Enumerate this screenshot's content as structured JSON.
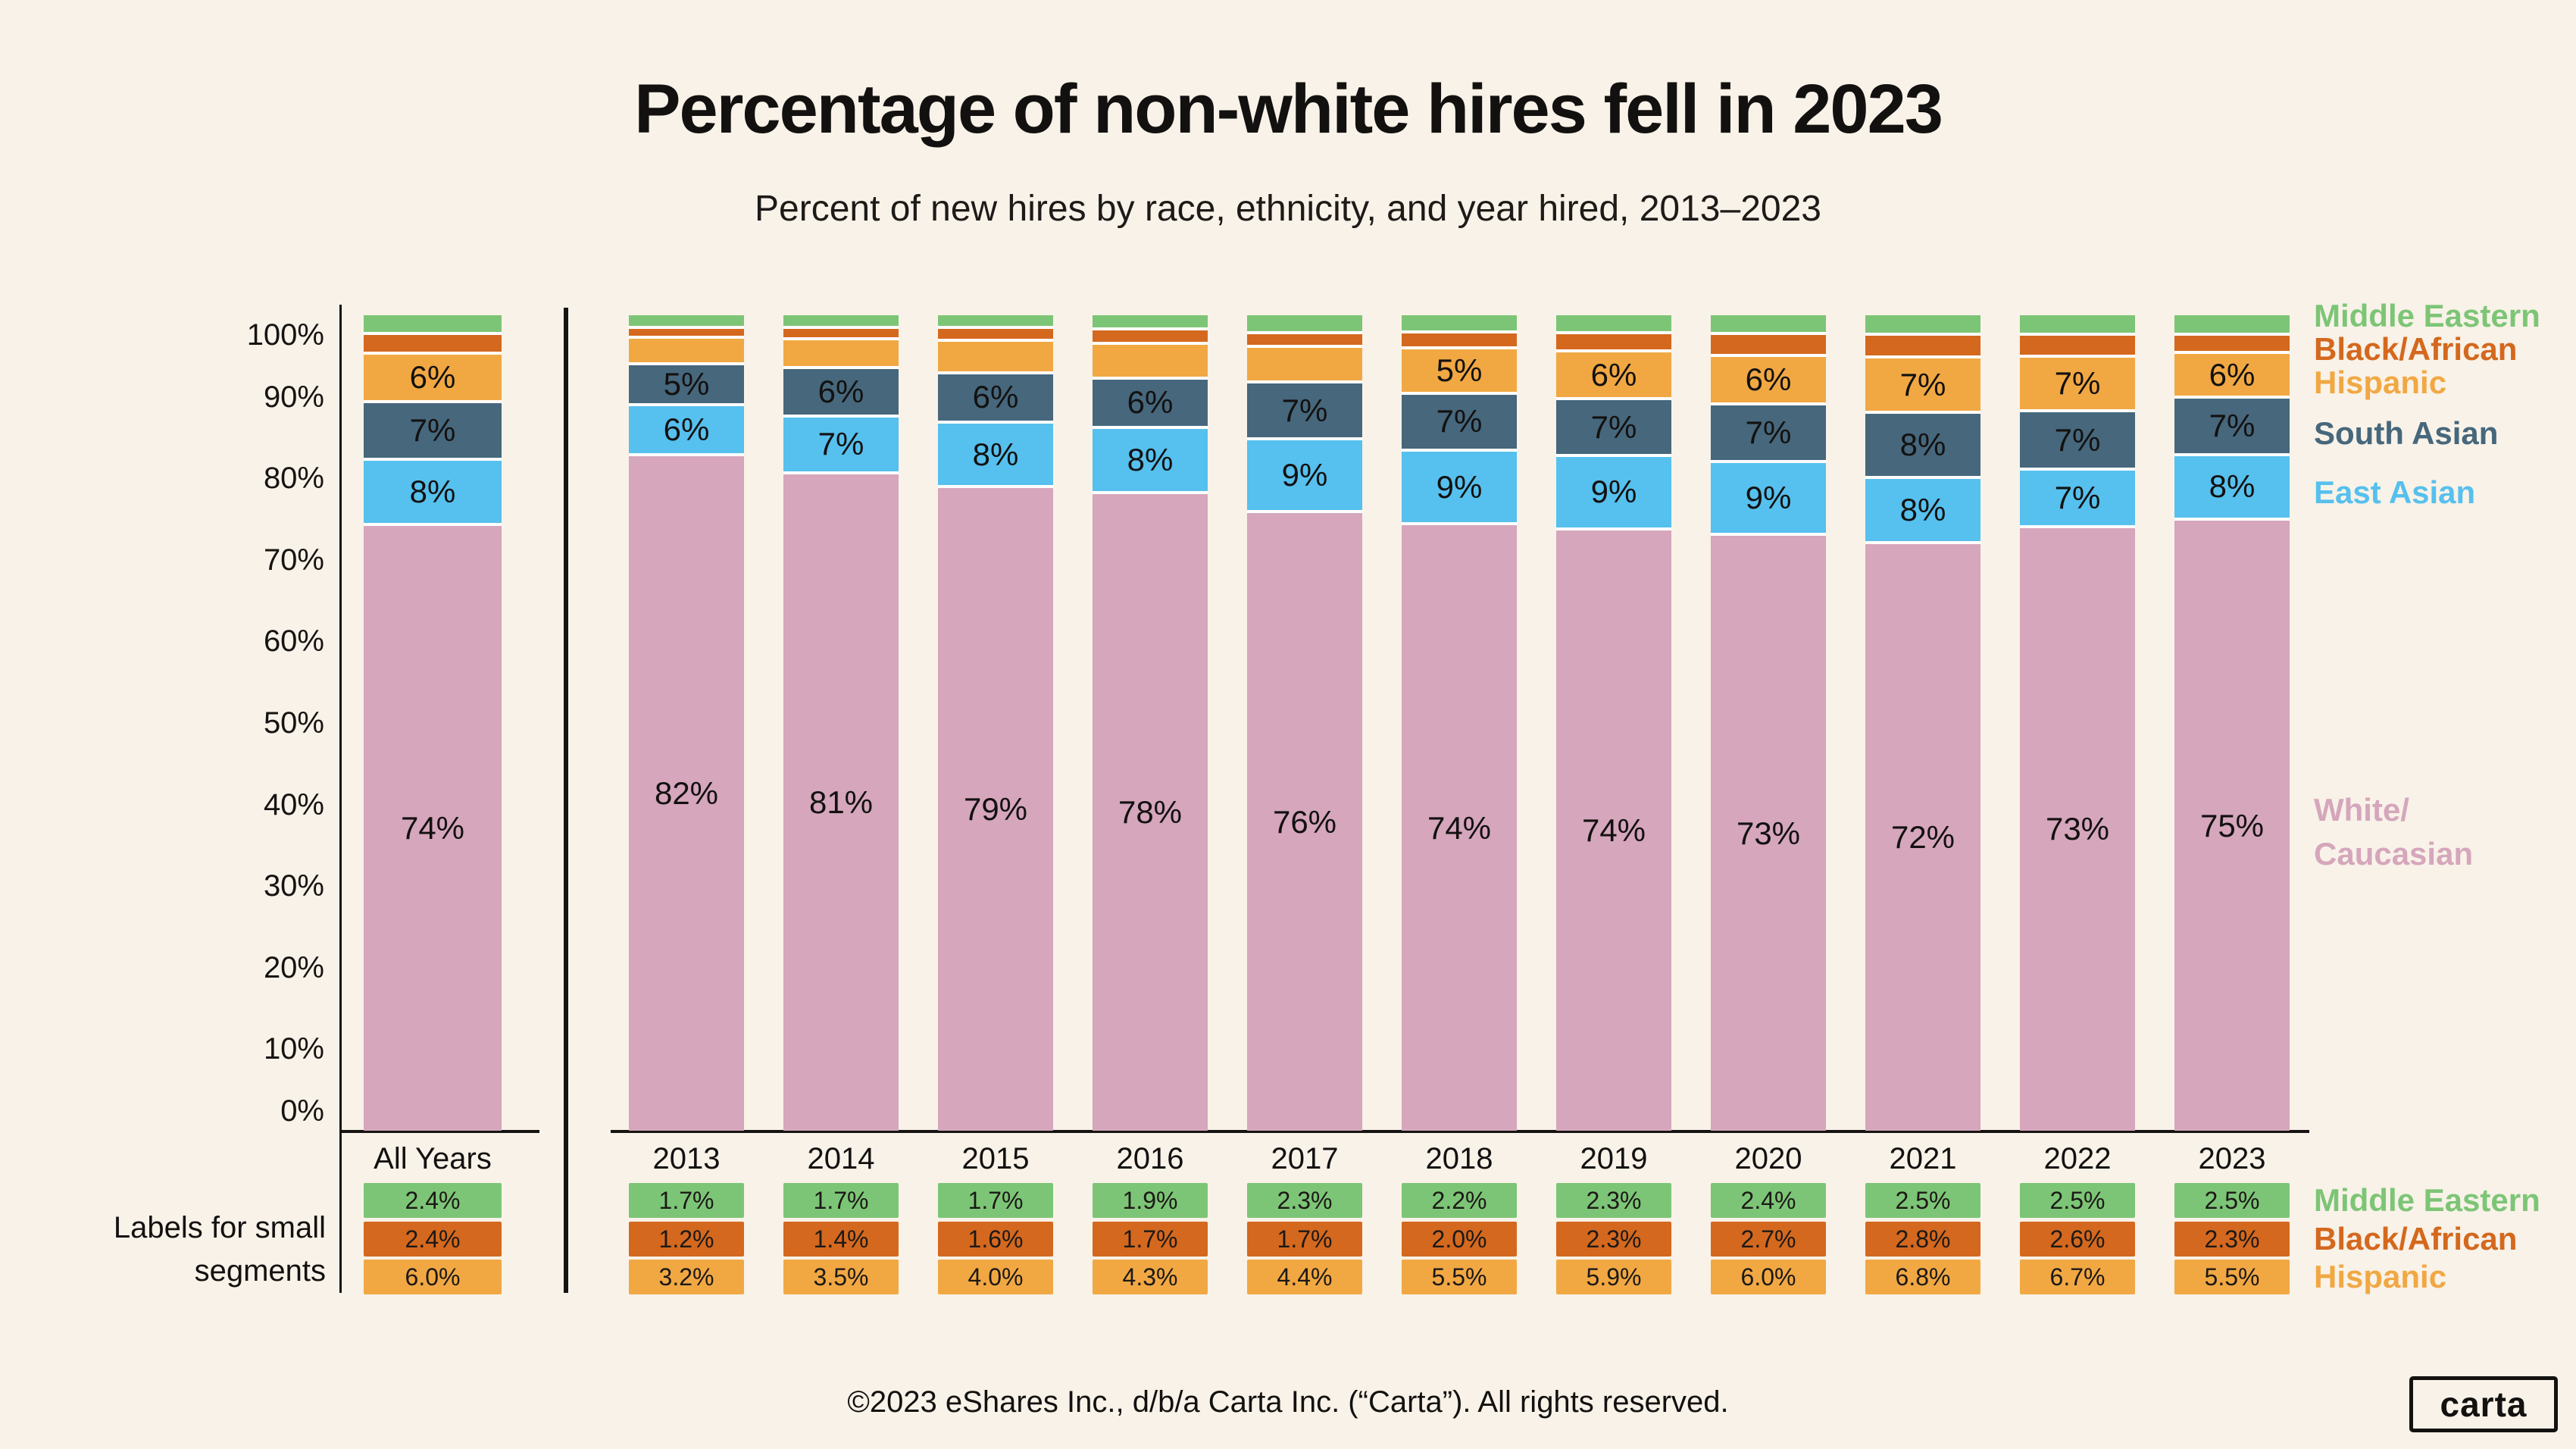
{
  "title": "Percentage of non-white hires fell in 2023",
  "subtitle": "Percent of new hires by race, ethnicity, and year hired, 2013–2023",
  "note": "Labels for small\nsegments",
  "footer": "©2023 eShares Inc., d/b/a Carta Inc. (“Carta”). All rights reserved.",
  "logo_text": "carta",
  "colors": {
    "background": "#f8f2e8",
    "text": "#131110",
    "axis": "#161412",
    "segment_gap": "#ffffff",
    "middle_eastern": "#7dc576",
    "black_african": "#d4681e",
    "hispanic": "#f1a843",
    "south_asian": "#46677c",
    "east_asian": "#56c0ee",
    "white_caucasian": "#d5a6bc"
  },
  "legend": {
    "middle_eastern": "Middle Eastern",
    "black_african": "Black/African",
    "hispanic": "Hispanic",
    "south_asian": "South Asian",
    "east_asian": "East Asian",
    "white_caucasian": "White/\nCaucasian",
    "bottom_middle_eastern": "Middle Eastern",
    "bottom_black_african": "Black/African",
    "bottom_hispanic": "Hispanic"
  },
  "chart_data": {
    "type": "bar",
    "stacked": true,
    "title": "Percentage of non-white hires fell in 2023",
    "xlabel": "",
    "ylabel": "",
    "ylim": [
      0,
      100
    ],
    "grid": false,
    "legend_position": "right",
    "y_ticks": [
      "0%",
      "10%",
      "20%",
      "30%",
      "40%",
      "50%",
      "60%",
      "70%",
      "80%",
      "90%",
      "100%"
    ],
    "categories": [
      "All Years",
      "2013",
      "2014",
      "2015",
      "2016",
      "2017",
      "2018",
      "2019",
      "2020",
      "2021",
      "2022",
      "2023"
    ],
    "series": [
      {
        "name": "White/Caucasian",
        "color": "#d5a6bc",
        "values": [
          74,
          82,
          81,
          79,
          78,
          76,
          74,
          74,
          73,
          72,
          73,
          75
        ],
        "bar_labels": [
          "74%",
          "82%",
          "81%",
          "79%",
          "78%",
          "76%",
          "74%",
          "74%",
          "73%",
          "72%",
          "73%",
          "75%"
        ]
      },
      {
        "name": "East Asian",
        "color": "#56c0ee",
        "values": [
          8,
          6,
          7,
          8,
          8,
          9,
          9,
          9,
          9,
          8,
          7,
          8
        ],
        "bar_labels": [
          "8%",
          "6%",
          "7%",
          "8%",
          "8%",
          "9%",
          "9%",
          "9%",
          "9%",
          "8%",
          "7%",
          "8%"
        ]
      },
      {
        "name": "South Asian",
        "color": "#46677c",
        "values": [
          7,
          5,
          6,
          6,
          6,
          7,
          7,
          7,
          7,
          8,
          7,
          7
        ],
        "bar_labels": [
          "7%",
          "5%",
          "6%",
          "6%",
          "6%",
          "7%",
          "7%",
          "7%",
          "7%",
          "8%",
          "7%",
          "7%"
        ]
      },
      {
        "name": "Hispanic",
        "color": "#f1a843",
        "values": [
          6.0,
          3.2,
          3.5,
          4.0,
          4.3,
          4.4,
          5.5,
          5.9,
          6.0,
          6.8,
          6.7,
          5.5
        ],
        "bar_labels": [
          "6%",
          "",
          "",
          "",
          "",
          "",
          "5%",
          "6%",
          "6%",
          "7%",
          "7%",
          "6%"
        ],
        "chip_labels": [
          "6.0%",
          "3.2%",
          "3.5%",
          "4.0%",
          "4.3%",
          "4.4%",
          "5.5%",
          "5.9%",
          "6.0%",
          "6.8%",
          "6.7%",
          "5.5%"
        ]
      },
      {
        "name": "Black/African",
        "color": "#d4681e",
        "values": [
          2.4,
          1.2,
          1.4,
          1.6,
          1.7,
          1.7,
          2.0,
          2.3,
          2.7,
          2.8,
          2.6,
          2.3
        ],
        "bar_labels": [
          "",
          "",
          "",
          "",
          "",
          "",
          "",
          "",
          "",
          "",
          "",
          ""
        ],
        "chip_labels": [
          "2.4%",
          "1.2%",
          "1.4%",
          "1.6%",
          "1.7%",
          "1.7%",
          "2.0%",
          "2.3%",
          "2.7%",
          "2.8%",
          "2.6%",
          "2.3%"
        ]
      },
      {
        "name": "Middle Eastern",
        "color": "#7dc576",
        "values": [
          2.4,
          1.7,
          1.7,
          1.7,
          1.9,
          2.3,
          2.2,
          2.3,
          2.4,
          2.5,
          2.5,
          2.5
        ],
        "bar_labels": [
          "",
          "",
          "",
          "",
          "",
          "",
          "",
          "",
          "",
          "",
          "",
          ""
        ],
        "chip_labels": [
          "2.4%",
          "1.7%",
          "1.7%",
          "1.7%",
          "1.9%",
          "2.3%",
          "2.2%",
          "2.3%",
          "2.4%",
          "2.5%",
          "2.5%",
          "2.5%"
        ]
      }
    ]
  }
}
